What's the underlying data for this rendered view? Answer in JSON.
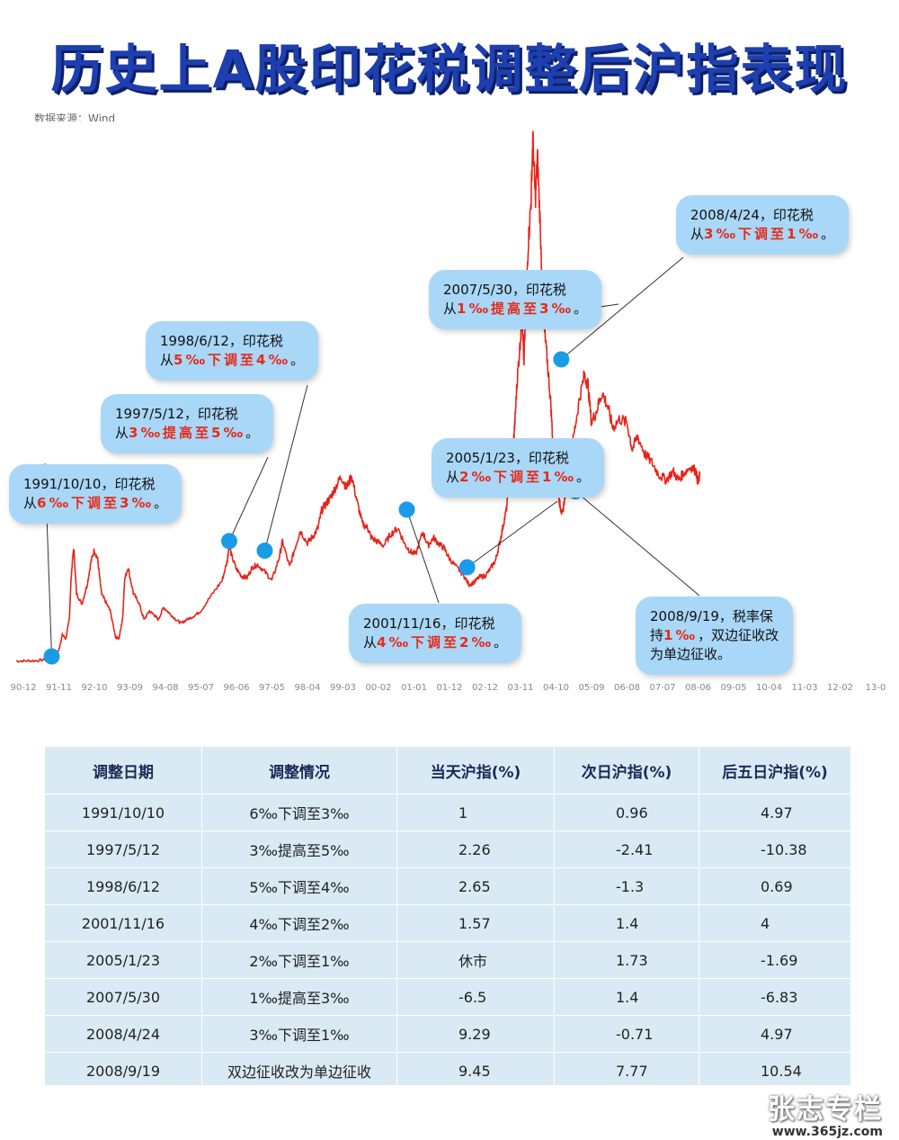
{
  "title": "历史上A股印花税调整后沪指表现",
  "source": "数据来源：Wind",
  "chart_data": {
    "type": "line",
    "x_ticks": [
      "90-12",
      "91-11",
      "92-10",
      "93-09",
      "94-08",
      "95-07",
      "96-06",
      "97-05",
      "98-04",
      "99-03",
      "00-02",
      "01-01",
      "01-12",
      "02-12",
      "03-11",
      "04-10",
      "05-09",
      "06-08",
      "07-07",
      "08-06",
      "09-05",
      "10-04",
      "11-03",
      "12-02",
      "13-0"
    ],
    "y_axis_labels": false,
    "series": [
      {
        "color": "#e8231a",
        "points": [
          [
            0.0,
            127
          ],
          [
            0.3,
            128
          ],
          [
            0.6,
            132
          ],
          [
            0.9,
            148
          ],
          [
            1.05,
            180
          ],
          [
            1.2,
            250
          ],
          [
            1.3,
            430
          ],
          [
            1.4,
            380
          ],
          [
            1.5,
            620
          ],
          [
            1.55,
            1100
          ],
          [
            1.62,
            1429
          ],
          [
            1.7,
            900
          ],
          [
            1.85,
            780
          ],
          [
            2.0,
            1000
          ],
          [
            2.1,
            1250
          ],
          [
            2.2,
            1400
          ],
          [
            2.3,
            1280
          ],
          [
            2.4,
            900
          ],
          [
            2.5,
            820
          ],
          [
            2.65,
            700
          ],
          [
            2.8,
            400
          ],
          [
            2.9,
            390
          ],
          [
            3.0,
            620
          ],
          [
            3.05,
            1050
          ],
          [
            3.15,
            1200
          ],
          [
            3.3,
            900
          ],
          [
            3.45,
            800
          ],
          [
            3.6,
            600
          ],
          [
            3.75,
            700
          ],
          [
            3.9,
            650
          ],
          [
            4.0,
            600
          ],
          [
            4.15,
            740
          ],
          [
            4.3,
            680
          ],
          [
            4.5,
            600
          ],
          [
            4.65,
            560
          ],
          [
            4.8,
            600
          ],
          [
            5.0,
            640
          ],
          [
            5.2,
            700
          ],
          [
            5.5,
            880
          ],
          [
            5.8,
            1050
          ],
          [
            5.95,
            1280
          ],
          [
            6.0,
            1500
          ],
          [
            6.05,
            1350
          ],
          [
            6.2,
            1180
          ],
          [
            6.35,
            1100
          ],
          [
            6.5,
            1080
          ],
          [
            6.65,
            1200
          ],
          [
            6.8,
            1230
          ],
          [
            7.0,
            1150
          ],
          [
            7.2,
            1050
          ],
          [
            7.4,
            1300
          ],
          [
            7.5,
            1500
          ],
          [
            7.7,
            1200
          ],
          [
            7.85,
            1420
          ],
          [
            8.0,
            1620
          ],
          [
            8.2,
            1480
          ],
          [
            8.35,
            1550
          ],
          [
            8.5,
            1650
          ],
          [
            8.6,
            1850
          ],
          [
            8.75,
            1940
          ],
          [
            8.85,
            2000
          ],
          [
            9.0,
            2120
          ],
          [
            9.15,
            2240
          ],
          [
            9.3,
            2110
          ],
          [
            9.45,
            2245
          ],
          [
            9.6,
            1950
          ],
          [
            9.75,
            1700
          ],
          [
            9.9,
            1650
          ],
          [
            10.0,
            1540
          ],
          [
            10.15,
            1500
          ],
          [
            10.35,
            1450
          ],
          [
            10.55,
            1580
          ],
          [
            10.75,
            1650
          ],
          [
            10.95,
            1460
          ],
          [
            11.1,
            1380
          ],
          [
            11.25,
            1350
          ],
          [
            11.45,
            1600
          ],
          [
            11.6,
            1450
          ],
          [
            11.75,
            1540
          ],
          [
            11.9,
            1470
          ],
          [
            12.05,
            1420
          ],
          [
            12.2,
            1300
          ],
          [
            12.4,
            1200
          ],
          [
            12.6,
            1110
          ],
          [
            12.75,
            1000
          ],
          [
            12.9,
            1030
          ],
          [
            13.05,
            1090
          ],
          [
            13.2,
            1100
          ],
          [
            13.35,
            1180
          ],
          [
            13.5,
            1280
          ],
          [
            13.6,
            1450
          ],
          [
            13.7,
            1650
          ],
          [
            13.8,
            1850
          ],
          [
            13.9,
            2200
          ],
          [
            14.0,
            2600
          ],
          [
            14.05,
            2900
          ],
          [
            14.1,
            3300
          ],
          [
            14.18,
            3700
          ],
          [
            14.25,
            4100
          ],
          [
            14.3,
            3500
          ],
          [
            14.35,
            4200
          ],
          [
            14.42,
            4900
          ],
          [
            14.5,
            5400
          ],
          [
            14.55,
            6124
          ],
          [
            14.62,
            5400
          ],
          [
            14.68,
            5900
          ],
          [
            14.75,
            5200
          ],
          [
            14.85,
            4000
          ],
          [
            14.95,
            3600
          ],
          [
            15.05,
            3100
          ],
          [
            15.12,
            2600
          ],
          [
            15.2,
            2200
          ],
          [
            15.28,
            2000
          ],
          [
            15.32,
            1900
          ],
          [
            15.38,
            1800
          ],
          [
            15.45,
            2000
          ],
          [
            15.55,
            2300
          ],
          [
            15.7,
            2700
          ],
          [
            15.85,
            3100
          ],
          [
            16.0,
            3400
          ],
          [
            16.1,
            3300
          ],
          [
            16.2,
            2850
          ],
          [
            16.35,
            3000
          ],
          [
            16.5,
            3200
          ],
          [
            16.65,
            3050
          ],
          [
            16.8,
            2800
          ],
          [
            17.0,
            2900
          ],
          [
            17.2,
            2850
          ],
          [
            17.35,
            2550
          ],
          [
            17.5,
            2700
          ],
          [
            17.7,
            2500
          ],
          [
            17.9,
            2400
          ],
          [
            18.1,
            2260
          ],
          [
            18.3,
            2200
          ],
          [
            18.5,
            2300
          ],
          [
            18.65,
            2200
          ],
          [
            18.8,
            2280
          ],
          [
            19.0,
            2350
          ],
          [
            19.15,
            2300
          ],
          [
            19.2,
            2160
          ],
          [
            19.25,
            2250
          ]
        ]
      }
    ],
    "annotations": [
      {
        "date": "1991/10/10",
        "x": 1.0,
        "y": 180,
        "lines": [
          "1991/10/10，印花税",
          "从"
        ],
        "emph": "6‰下调至3‰",
        "tail": "。"
      },
      {
        "date": "1997/5/12",
        "x": 6.0,
        "y": 1500,
        "lines": [
          "1997/5/12，印花税",
          "从"
        ],
        "emph": "3‰提高至5‰",
        "tail": "。"
      },
      {
        "date": "1998/6/12",
        "x": 7.0,
        "y": 1390,
        "lines": [
          "1998/6/12，印花税",
          "从"
        ],
        "emph": "5‰下调至4‰",
        "tail": "。"
      },
      {
        "date": "2001/11/16",
        "x": 11.0,
        "y": 1860,
        "lines": [
          "2001/11/16，印花税",
          "从"
        ],
        "emph": "4‰下调至2‰",
        "tail": "。"
      },
      {
        "date": "2005/1/23",
        "x": 12.7,
        "y": 1200,
        "lines": [
          "2005/1/23，印花税",
          "从"
        ],
        "emph": "2‰下调至1‰",
        "tail": "。"
      },
      {
        "date": "2007/5/30",
        "x": 14.3,
        "y": 4050,
        "lines": [
          "2007/5/30，印花税",
          "从"
        ],
        "emph": "1‰提高至3‰",
        "tail": "。"
      },
      {
        "date": "2008/4/24",
        "x": 15.35,
        "y": 3580,
        "lines": [
          "2008/4/24，印花税",
          "从"
        ],
        "emph": "3‰下调至1‰",
        "tail": "。"
      },
      {
        "date": "2008/9/19",
        "x": 15.75,
        "y": 2070,
        "lines": [
          "2008/9/19，税率保",
          "持"
        ],
        "emph": "1‰",
        "tail": "，双边征收改",
        "line3": "为单边征收。"
      }
    ]
  },
  "table": {
    "headers": [
      "调整日期",
      "调整情况",
      "当天沪指(%)",
      "次日沪指(%)",
      "后五日沪指(%)"
    ],
    "rows": [
      [
        "1991/10/10",
        "6‰下调至3‰",
        "1",
        "0.96",
        "4.97"
      ],
      [
        "1997/5/12",
        "3‰提高至5‰",
        "2.26",
        "-2.41",
        "-10.38"
      ],
      [
        "1998/6/12",
        "5‰下调至4‰",
        "2.65",
        "-1.3",
        "0.69"
      ],
      [
        "2001/11/16",
        "4‰下调至2‰",
        "1.57",
        "1.4",
        "4"
      ],
      [
        "2005/1/23",
        "2‰下调至1‰",
        "休市",
        "1.73",
        "-1.69"
      ],
      [
        "2007/5/30",
        "1‰提高至3‰",
        "-6.5",
        "1.4",
        "-6.83"
      ],
      [
        "2008/4/24",
        "3‰下调至1‰",
        "9.29",
        "-0.71",
        "4.97"
      ],
      [
        "2008/9/19",
        "双边征收改为单边征收",
        "9.45",
        "7.77",
        "10.54"
      ]
    ]
  },
  "watermark": {
    "line1": "张志专栏",
    "line2": "www.365jz.com"
  },
  "colors": {
    "title": "#1d3fb0",
    "line": "#e8231a",
    "callout": "#a9d7f7",
    "dot": "#1a9be8",
    "positive": "#e0301e",
    "negative": "#1e7a4a"
  }
}
